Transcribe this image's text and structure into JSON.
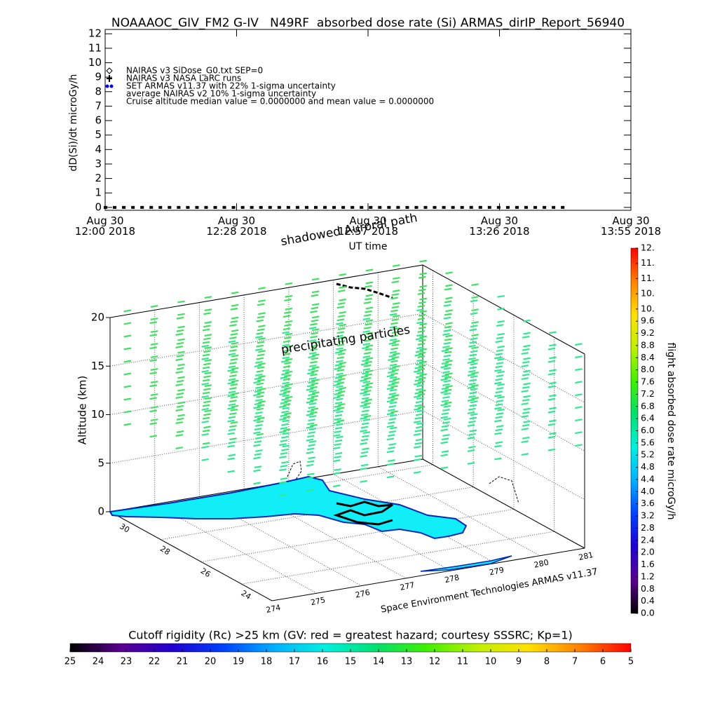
{
  "chart_data": [
    {
      "type": "line",
      "title": "NOAAAOC_GIV_FM2 G-IV   N49RF  absorbed dose rate (Si) ARMAS_dirIP_Report_56940",
      "y_label": "dD(Si)/dt microGy/h",
      "x_label": "UT time",
      "xlim": [
        0,
        115
      ],
      "xticks": [
        {
          "value": 0,
          "label": "Aug 30\n12:00 2018"
        },
        {
          "value": 28.75,
          "label": "Aug 30\n12:28 2018"
        },
        {
          "value": 57.5,
          "label": "Aug 30\n12:57 2018"
        },
        {
          "value": 86.25,
          "label": "Aug 30\n13:26 2018"
        },
        {
          "value": 115,
          "label": "Aug 30\n13:55 2018"
        }
      ],
      "ylim": [
        -0.2,
        12.3
      ],
      "yticks": [
        0,
        1,
        2,
        3,
        4,
        5,
        6,
        7,
        8,
        9,
        10,
        11,
        12
      ],
      "x": [
        0,
        2,
        4,
        6,
        8,
        10,
        12,
        14,
        16,
        18,
        20,
        22,
        24,
        26,
        28,
        30,
        32,
        34,
        36,
        38,
        40,
        42,
        44,
        46,
        48,
        50,
        52,
        54,
        56,
        58,
        60,
        62,
        64,
        66,
        68,
        70,
        72,
        74,
        76,
        78,
        80,
        82,
        84,
        86,
        88,
        90,
        92,
        94,
        96,
        98,
        100
      ],
      "series": [
        {
          "name": "NAIRAS v3 SiDose_G0.txt SEP=0",
          "marker": "diamond",
          "color": "#000000"
        },
        {
          "name": "NAIRAS v3 NASA LaRC runs",
          "marker": "plus",
          "color": "#000000"
        },
        {
          "name": "SET ARMAS v11.37 with 22% 1-sigma uncertainty",
          "marker": "star",
          "color": "#0000ff",
          "marker_color": "#000000",
          "values": [
            0,
            0,
            0,
            0,
            0,
            0,
            0,
            0,
            0,
            0,
            0,
            0,
            0,
            0,
            0,
            0,
            0,
            0,
            0,
            0,
            0,
            0,
            0,
            0,
            0,
            0,
            0,
            0,
            0,
            0,
            0,
            0,
            0,
            0,
            0,
            0,
            0,
            0,
            0,
            0,
            0,
            0,
            0,
            0,
            0,
            0,
            0,
            0,
            0,
            0,
            0
          ]
        },
        {
          "name": "average NAIRAS v2 10% 1-sigma uncertainty"
        }
      ],
      "annotation": "Cruise altitude median value = 0.0000000 and mean value = 0.0000000"
    },
    {
      "type": "surface3d",
      "z_label": "Altitude (km)",
      "zlim": [
        0,
        20
      ],
      "zticks": [
        0,
        5,
        10,
        15,
        20
      ],
      "ylim": [
        22.5,
        30.5
      ],
      "yticks": [
        30,
        28,
        26,
        24
      ],
      "xlim": [
        274,
        281
      ],
      "xticks": [
        274,
        275,
        276,
        277,
        278,
        279,
        280,
        281
      ],
      "annotations": [
        "shadowed Auroral path",
        "precipitating particles"
      ],
      "credit": "Space Environment Technologies ARMAS v11.37"
    },
    {
      "type": "colorbar",
      "orientation": "vertical",
      "label": "flight absorbed dose rate microGy/h",
      "lim": [
        0,
        12
      ],
      "ticks": [
        {
          "value": 0,
          "label": "0.0"
        },
        0.4,
        0.8,
        1.2,
        1.6,
        {
          "value": 2,
          "label": "2.0"
        },
        2.4,
        2.8,
        3.2,
        3.6,
        {
          "value": 4,
          "label": "4.0"
        },
        4.4,
        4.8,
        5.2,
        5.6,
        {
          "value": 6,
          "label": "6.0"
        },
        6.4,
        6.8,
        7.2,
        7.6,
        {
          "value": 8,
          "label": "8.0"
        },
        8.4,
        8.8,
        9.2,
        9.6,
        {
          "value": 10,
          "label": "10."
        },
        {
          "value": 10.5,
          "label": "10."
        },
        {
          "value": 11,
          "label": "11."
        },
        {
          "value": 11.5,
          "label": "11."
        },
        {
          "value": 12,
          "label": "12."
        }
      ],
      "colormap": [
        "#000000",
        "#5a0090",
        "#2000d0",
        "#0040ff",
        "#00b0ff",
        "#00f0e0",
        "#00e070",
        "#40f000",
        "#c0f000",
        "#ffe000",
        "#ff8000",
        "#ff0000"
      ]
    },
    {
      "type": "colorbar",
      "orientation": "horizontal",
      "title": "Cutoff rigidity (Rc) >25 km (GV: red = greatest hazard; courtesy SSSRC; Kp=1)",
      "lim": [
        25,
        5
      ],
      "ticks": [
        25,
        24,
        23,
        22,
        21,
        20,
        19,
        18,
        17,
        16,
        15,
        14,
        13,
        12,
        11,
        10,
        9,
        8,
        7,
        6,
        5
      ],
      "colormap": [
        "#000000",
        "#5a0090",
        "#2000d0",
        "#0040ff",
        "#00b0ff",
        "#00f0e0",
        "#00e070",
        "#40f000",
        "#c0f000",
        "#ffe000",
        "#ff8000",
        "#ff0000"
      ]
    }
  ]
}
